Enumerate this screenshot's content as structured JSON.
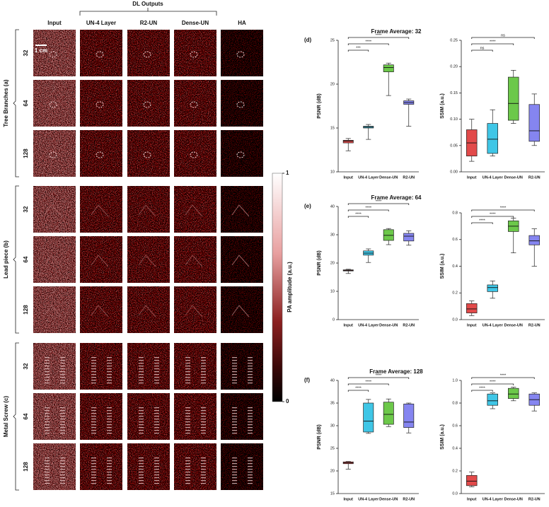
{
  "image_panel": {
    "dl_outputs_label": "DL Outputs",
    "column_headers": [
      "Input",
      "UN-4 Layer",
      "R2-UN",
      "Dense-UN",
      "HA"
    ],
    "groups": [
      {
        "label": "Tree Branches (a)",
        "rows": [
          "32",
          "64",
          "128"
        ]
      },
      {
        "label": "Lead piece (b)",
        "rows": [
          "32",
          "64",
          "128"
        ]
      },
      {
        "label": "Metal Screw (c)",
        "rows": [
          "32",
          "64",
          "128"
        ]
      }
    ],
    "scale_bar": "1 cm"
  },
  "colorbar": {
    "label": "PA amplitude (a.u.)",
    "ticks": [
      0,
      1
    ]
  },
  "chart_data": [
    {
      "type": "box",
      "panel": "(d)",
      "title": "Frame Average: 32",
      "y_label": "PSNR (dB)",
      "categories": [
        "Input",
        "UN-4 Layer",
        "Dense-UN",
        "R2-UN"
      ],
      "colors": [
        "#e24a4a",
        "#3fc6e6",
        "#6cc84a",
        "#8585f0"
      ],
      "boxes": [
        {
          "min": 12.4,
          "q1": 13.3,
          "median": 13.5,
          "q3": 13.6,
          "max": 13.8
        },
        {
          "min": 13.7,
          "q1": 15.0,
          "median": 15.1,
          "q3": 15.2,
          "max": 15.4
        },
        {
          "min": 18.7,
          "q1": 21.4,
          "median": 21.9,
          "q3": 22.2,
          "max": 22.4
        },
        {
          "min": 15.2,
          "q1": 17.7,
          "median": 17.9,
          "q3": 18.1,
          "max": 18.3
        }
      ],
      "brackets": [
        {
          "to": "UN-4 Layer",
          "label": "***"
        },
        {
          "to": "Dense-UN",
          "label": "****"
        },
        {
          "to": "R2-UN",
          "label": "****"
        }
      ],
      "ylim": [
        10,
        25
      ],
      "yticks": [
        10,
        15,
        20,
        25
      ]
    },
    {
      "type": "box",
      "y_label": "SSIM (a.u.)",
      "categories": [
        "Input",
        "UN-4 Layer",
        "Dense-UN",
        "R2-UN"
      ],
      "colors": [
        "#e24a4a",
        "#3fc6e6",
        "#6cc84a",
        "#8585f0"
      ],
      "boxes": [
        {
          "min": 0.02,
          "q1": 0.03,
          "median": 0.055,
          "q3": 0.08,
          "max": 0.1
        },
        {
          "min": 0.03,
          "q1": 0.035,
          "median": 0.062,
          "q3": 0.092,
          "max": 0.118
        },
        {
          "min": 0.092,
          "q1": 0.098,
          "median": 0.13,
          "q3": 0.18,
          "max": 0.193
        },
        {
          "min": 0.05,
          "q1": 0.058,
          "median": 0.078,
          "q3": 0.128,
          "max": 0.148
        }
      ],
      "brackets": [
        {
          "to": "UN-4 Layer",
          "label": "ns"
        },
        {
          "to": "Dense-UN",
          "label": "****"
        },
        {
          "to": "R2-UN",
          "label": "ns"
        }
      ],
      "ylim": [
        0,
        0.25
      ],
      "yticks": [
        {
          "value": 0,
          "label": "0.00"
        },
        {
          "value": 0.05,
          "label": "0.05"
        },
        {
          "value": 0.1,
          "label": "0.10"
        },
        {
          "value": 0.15,
          "label": "0.15"
        },
        {
          "value": 0.2,
          "label": "0.20"
        },
        {
          "value": 0.25,
          "label": "0.25"
        }
      ]
    },
    {
      "type": "box",
      "panel": "(e)",
      "title": "Frame Average: 64",
      "y_label": "PSNR (dB)",
      "categories": [
        "Input",
        "UN-4 Layer",
        "Dense-UN",
        "R2-UN"
      ],
      "colors": [
        "#e24a4a",
        "#3fc6e6",
        "#6cc84a",
        "#8585f0"
      ],
      "boxes": [
        {
          "min": 16.3,
          "q1": 17.2,
          "median": 17.4,
          "q3": 17.6,
          "max": 17.8
        },
        {
          "min": 20.2,
          "q1": 22.8,
          "median": 23.5,
          "q3": 24.3,
          "max": 25.0
        },
        {
          "min": 26.5,
          "q1": 28.0,
          "median": 29.8,
          "q3": 31.8,
          "max": 32.2
        },
        {
          "min": 26.3,
          "q1": 27.8,
          "median": 29.5,
          "q3": 30.5,
          "max": 31.4
        }
      ],
      "brackets": [
        {
          "to": "UN-4 Layer",
          "label": "****"
        },
        {
          "to": "Dense-UN",
          "label": "****"
        },
        {
          "to": "R2-UN",
          "label": "****"
        }
      ],
      "ylim": [
        0,
        40
      ],
      "yticks": [
        0,
        10,
        20,
        30,
        40
      ]
    },
    {
      "type": "box",
      "y_label": "SSIM (a.u.)",
      "categories": [
        "Input",
        "UN-4 Layer",
        "Dense-UN",
        "R2-UN"
      ],
      "colors": [
        "#e24a4a",
        "#3fc6e6",
        "#6cc84a",
        "#8585f0"
      ],
      "boxes": [
        {
          "min": 0.03,
          "q1": 0.05,
          "median": 0.08,
          "q3": 0.12,
          "max": 0.14
        },
        {
          "min": 0.16,
          "q1": 0.21,
          "median": 0.24,
          "q3": 0.26,
          "max": 0.29
        },
        {
          "min": 0.5,
          "q1": 0.66,
          "median": 0.7,
          "q3": 0.74,
          "max": 0.76
        },
        {
          "min": 0.4,
          "q1": 0.56,
          "median": 0.59,
          "q3": 0.63,
          "max": 0.68
        }
      ],
      "brackets": [
        {
          "to": "UN-4 Layer",
          "label": "****"
        },
        {
          "to": "Dense-UN",
          "label": "****"
        },
        {
          "to": "R2-UN",
          "label": "****"
        }
      ],
      "ylim": [
        0,
        0.8
      ],
      "yticks": [
        {
          "value": 0,
          "label": "0.0"
        },
        {
          "value": 0.2,
          "label": "0.2"
        },
        {
          "value": 0.4,
          "label": "0.4"
        },
        {
          "value": 0.6,
          "label": "0.6"
        },
        {
          "value": 0.8,
          "label": "0.8"
        }
      ]
    },
    {
      "type": "box",
      "panel": "(f)",
      "title": "Frame Average: 128",
      "y_label": "PSNR (dB)",
      "categories": [
        "Input",
        "UN-4 Layer",
        "Dense-UN",
        "R2-UN"
      ],
      "colors": [
        "#e24a4a",
        "#3fc6e6",
        "#6cc84a",
        "#8585f0"
      ],
      "boxes": [
        {
          "min": 20.4,
          "q1": 21.6,
          "median": 21.8,
          "q3": 22.0,
          "max": 22.1
        },
        {
          "min": 28.3,
          "q1": 28.6,
          "median": 31.0,
          "q3": 35.0,
          "max": 35.8
        },
        {
          "min": 29.8,
          "q1": 30.3,
          "median": 32.5,
          "q3": 35.2,
          "max": 35.9
        },
        {
          "min": 28.4,
          "q1": 29.6,
          "median": 30.8,
          "q3": 34.8,
          "max": 35.0
        }
      ],
      "brackets": [
        {
          "to": "UN-4 Layer",
          "label": "****"
        },
        {
          "to": "Dense-UN",
          "label": "****"
        },
        {
          "to": "R2-UN",
          "label": "****"
        }
      ],
      "ylim": [
        15,
        40
      ],
      "yticks": [
        15,
        20,
        25,
        30,
        35,
        40
      ]
    },
    {
      "type": "box",
      "y_label": "SSIM (a.u.)",
      "categories": [
        "Input",
        "UN-4 Layer",
        "Dense-UN",
        "R2-UN"
      ],
      "colors": [
        "#e24a4a",
        "#3fc6e6",
        "#6cc84a",
        "#8585f0"
      ],
      "boxes": [
        {
          "min": 0.06,
          "q1": 0.07,
          "median": 0.11,
          "q3": 0.16,
          "max": 0.19
        },
        {
          "min": 0.75,
          "q1": 0.78,
          "median": 0.82,
          "q3": 0.88,
          "max": 0.89
        },
        {
          "min": 0.82,
          "q1": 0.84,
          "median": 0.88,
          "q3": 0.93,
          "max": 0.94
        },
        {
          "min": 0.73,
          "q1": 0.78,
          "median": 0.83,
          "q3": 0.88,
          "max": 0.89
        }
      ],
      "brackets": [
        {
          "to": "UN-4 Layer",
          "label": "****"
        },
        {
          "to": "Dense-UN",
          "label": "****"
        },
        {
          "to": "R2-UN",
          "label": "****"
        }
      ],
      "ylim": [
        0,
        1
      ],
      "yticks": [
        {
          "value": 0,
          "label": "0.0"
        },
        {
          "value": 0.2,
          "label": "0.2"
        },
        {
          "value": 0.4,
          "label": "0.4"
        },
        {
          "value": 0.6,
          "label": "0.6"
        },
        {
          "value": 0.8,
          "label": "0.8"
        },
        {
          "value": 1,
          "label": "1.0"
        }
      ]
    }
  ]
}
